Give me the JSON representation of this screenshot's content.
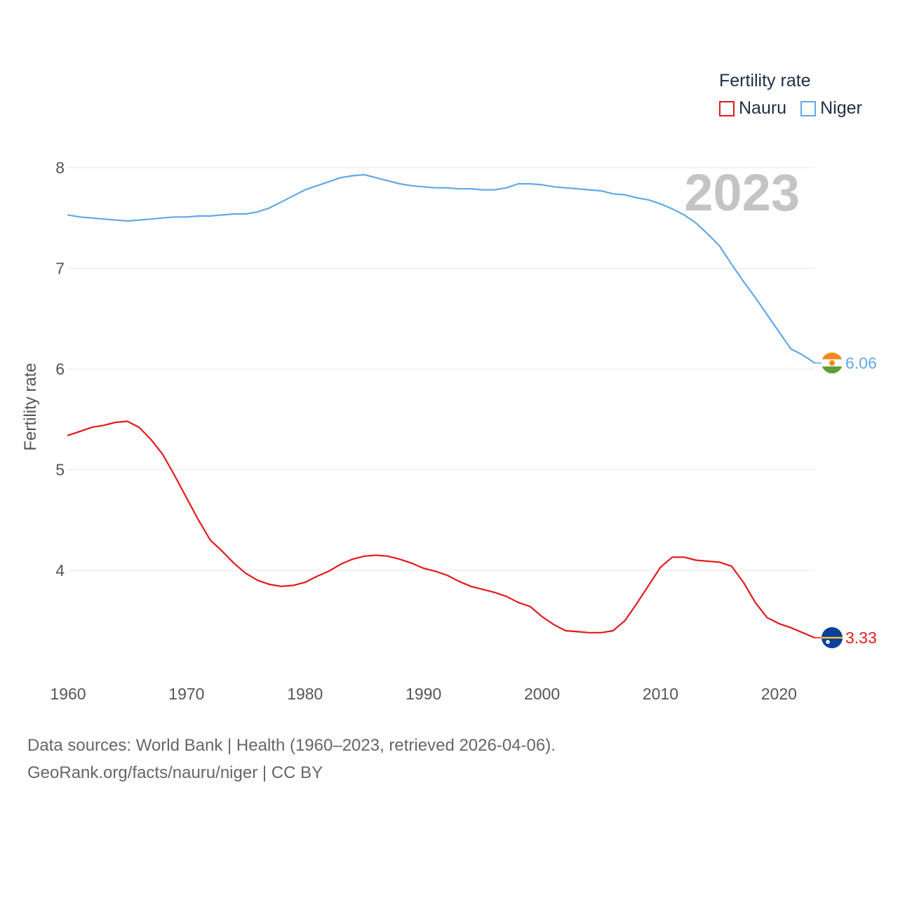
{
  "chart_data": {
    "type": "line",
    "title": "Fertility rate",
    "ylabel": "Fertility rate",
    "xlabel": "",
    "xlim": [
      1960,
      2023
    ],
    "ylim": [
      3.33,
      8
    ],
    "x_ticks": [
      1960,
      1970,
      1980,
      1990,
      2000,
      2010,
      2020
    ],
    "y_ticks": [
      4,
      5,
      6,
      7,
      8
    ],
    "year_label": "2023",
    "x": [
      1960,
      1961,
      1962,
      1963,
      1964,
      1965,
      1966,
      1967,
      1968,
      1969,
      1970,
      1971,
      1972,
      1973,
      1974,
      1975,
      1976,
      1977,
      1978,
      1979,
      1980,
      1981,
      1982,
      1983,
      1984,
      1985,
      1986,
      1987,
      1988,
      1989,
      1990,
      1991,
      1992,
      1993,
      1994,
      1995,
      1996,
      1997,
      1998,
      1999,
      2000,
      2001,
      2002,
      2003,
      2004,
      2005,
      2006,
      2007,
      2008,
      2009,
      2010,
      2011,
      2012,
      2013,
      2014,
      2015,
      2016,
      2017,
      2018,
      2019,
      2020,
      2021,
      2022,
      2023
    ],
    "series": [
      {
        "name": "Nauru",
        "color": "#e31a1c",
        "end_label": "3.33",
        "flag_icon": "nauru-flag-icon",
        "values": [
          5.34,
          5.38,
          5.42,
          5.44,
          5.47,
          5.48,
          5.42,
          5.3,
          5.15,
          4.94,
          4.72,
          4.5,
          4.3,
          4.19,
          4.07,
          3.97,
          3.9,
          3.86,
          3.84,
          3.85,
          3.88,
          3.94,
          3.99,
          4.06,
          4.11,
          4.14,
          4.15,
          4.14,
          4.11,
          4.07,
          4.02,
          3.99,
          3.95,
          3.89,
          3.84,
          3.81,
          3.78,
          3.74,
          3.68,
          3.64,
          3.54,
          3.46,
          3.4,
          3.39,
          3.38,
          3.38,
          3.4,
          3.5,
          3.67,
          3.85,
          4.03,
          4.13,
          4.13,
          4.1,
          4.09,
          4.08,
          4.04,
          3.88,
          3.68,
          3.53,
          3.47,
          3.43,
          3.38,
          3.33
        ]
      },
      {
        "name": "Niger",
        "color": "#62a8e8",
        "end_label": "6.06",
        "flag_icon": "niger-flag-icon",
        "values": [
          7.53,
          7.51,
          7.5,
          7.49,
          7.48,
          7.47,
          7.48,
          7.49,
          7.5,
          7.51,
          7.51,
          7.52,
          7.52,
          7.53,
          7.54,
          7.54,
          7.56,
          7.6,
          7.66,
          7.72,
          7.78,
          7.82,
          7.86,
          7.9,
          7.92,
          7.93,
          7.9,
          7.87,
          7.84,
          7.82,
          7.81,
          7.8,
          7.8,
          7.79,
          7.79,
          7.78,
          7.78,
          7.8,
          7.84,
          7.84,
          7.83,
          7.81,
          7.8,
          7.79,
          7.78,
          7.77,
          7.74,
          7.73,
          7.7,
          7.68,
          7.64,
          7.59,
          7.53,
          7.45,
          7.34,
          7.22,
          7.04,
          6.87,
          6.71,
          6.54,
          6.37,
          6.2,
          6.14,
          6.06
        ]
      }
    ]
  },
  "legend": {
    "title": "Fertility rate",
    "items": [
      {
        "label": "Nauru",
        "color": "#e31a1c"
      },
      {
        "label": "Niger",
        "color": "#62a8e8"
      }
    ]
  },
  "source": {
    "line1": "Data sources: World Bank | Health (1960–2023, retrieved 2026-04-06).",
    "line2": "GeoRank.org/facts/nauru/niger | CC BY"
  }
}
